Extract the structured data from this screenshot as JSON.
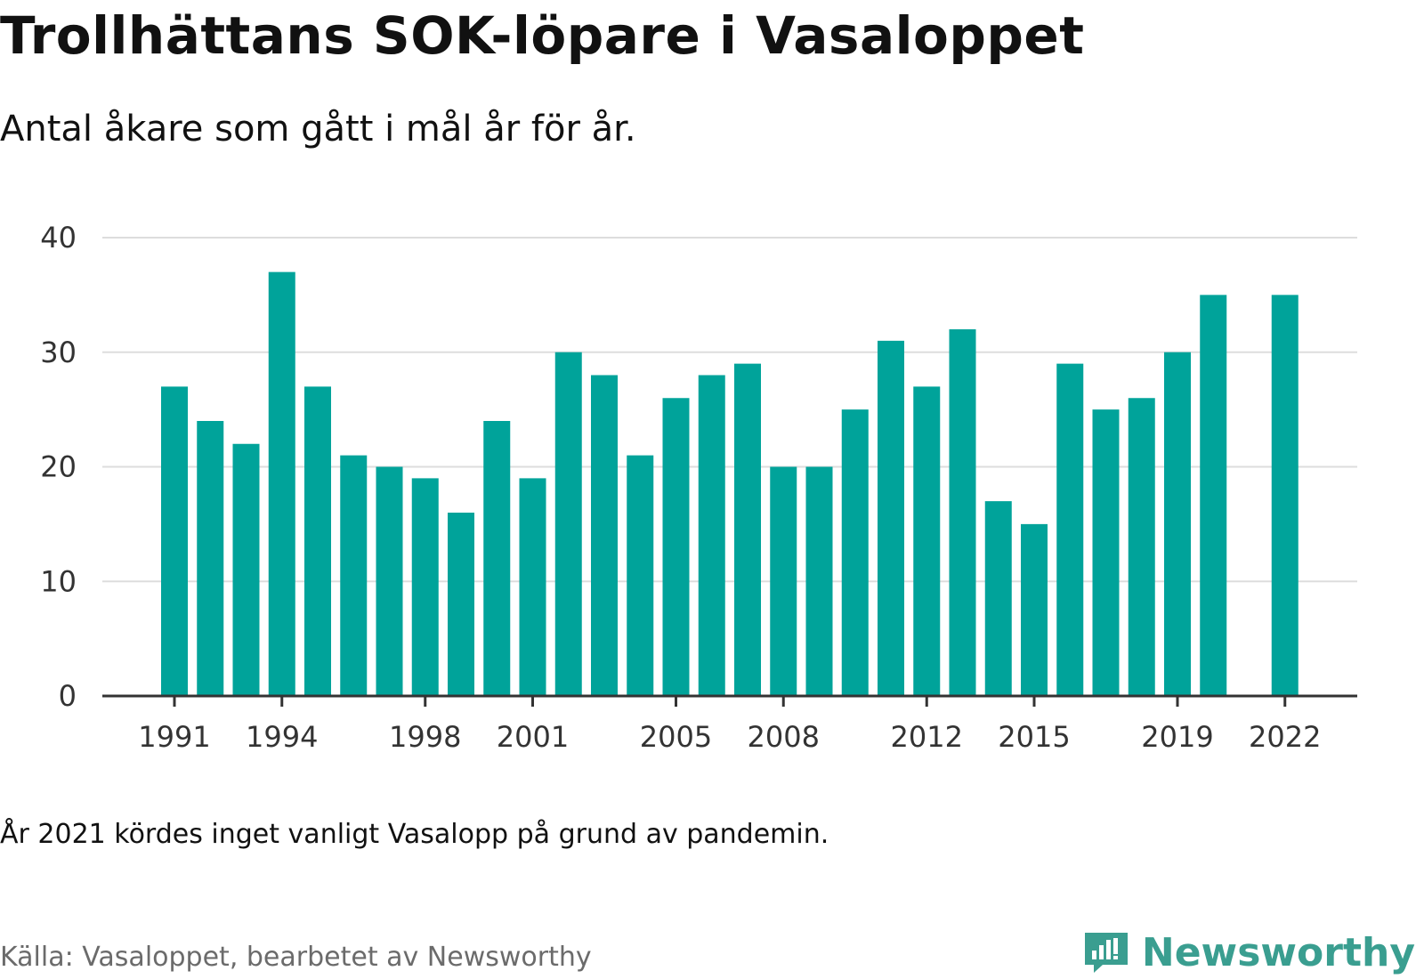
{
  "header": {
    "title": "Trollhättans SOK-löpare i Vasaloppet",
    "subtitle": "Antal åkare som gått i mål år för år."
  },
  "footer": {
    "note": "År 2021 kördes inget vanligt Vasalopp på grund av pandemin.",
    "source": "Källa: Vasaloppet, bearbetet av Newsworthy",
    "brand": "Newsworthy",
    "logo_icon": "newsworthy-logo-icon"
  },
  "colors": {
    "bar": "#00a39a",
    "grid": "#dddddd",
    "axis": "#333333",
    "brand": "#3a9e90"
  },
  "chart_data": {
    "type": "bar",
    "categories": [
      1991,
      1992,
      1993,
      1994,
      1995,
      1996,
      1997,
      1998,
      1999,
      2000,
      2001,
      2002,
      2003,
      2004,
      2005,
      2006,
      2007,
      2008,
      2009,
      2010,
      2011,
      2012,
      2013,
      2014,
      2015,
      2016,
      2017,
      2018,
      2019,
      2020,
      2021,
      2022
    ],
    "values": [
      27,
      24,
      22,
      37,
      27,
      21,
      20,
      19,
      16,
      24,
      19,
      30,
      28,
      21,
      26,
      28,
      29,
      20,
      20,
      25,
      31,
      27,
      32,
      17,
      15,
      29,
      25,
      26,
      30,
      35,
      null,
      35
    ],
    "x_tick_labels": [
      "1991",
      "1994",
      "1998",
      "2001",
      "2005",
      "2008",
      "2012",
      "2015",
      "2019",
      "2022"
    ],
    "y_ticks": [
      0,
      10,
      20,
      30,
      40
    ],
    "ylim": [
      0,
      40
    ],
    "grid": true,
    "legend": "none"
  }
}
